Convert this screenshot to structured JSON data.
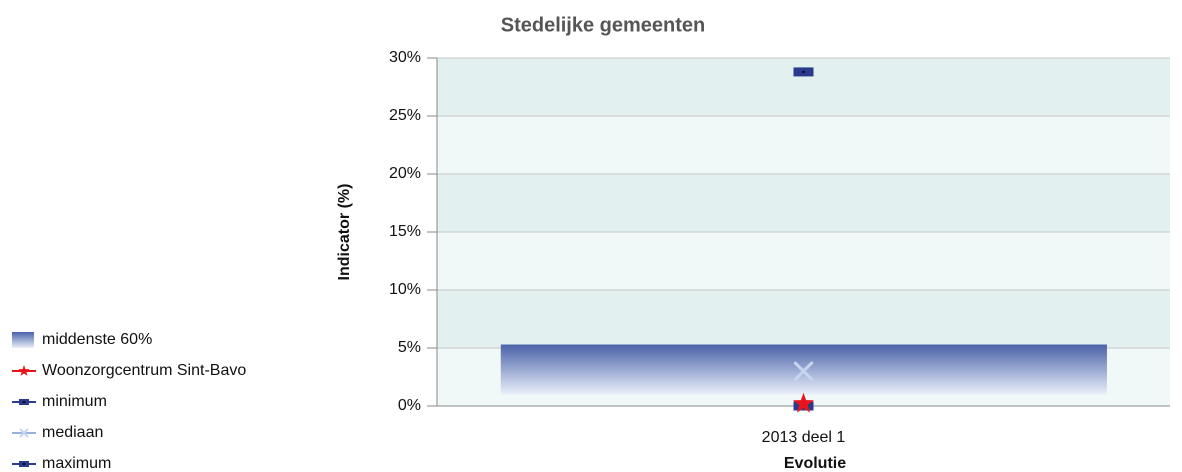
{
  "chart_data": {
    "type": "range-markers",
    "title": "Stedelijke gemeenten",
    "y_label": "Indicator (%)",
    "x_label": "Evolutie",
    "categories": [
      "2013 deel 1"
    ],
    "ylim": [
      0,
      30
    ],
    "yticks": [
      {
        "value": 0,
        "label": "0%"
      },
      {
        "value": 5,
        "label": "5%"
      },
      {
        "value": 10,
        "label": "10%"
      },
      {
        "value": 15,
        "label": "15%"
      },
      {
        "value": 20,
        "label": "20%"
      },
      {
        "value": 25,
        "label": "25%"
      },
      {
        "value": 30,
        "label": "30%"
      }
    ],
    "grid": true,
    "stripe_colors": [
      "#f1f8f8",
      "#e2f1ef"
    ],
    "series": [
      {
        "name": "middenste 60%",
        "color": "#4a62a8",
        "marker": "range",
        "low": [
          1.0
        ],
        "high": [
          5.3
        ]
      },
      {
        "name": "Woonzorgcentrum Sint-Bavo",
        "color": "#e8141b",
        "marker": "star",
        "values": [
          0.2
        ]
      },
      {
        "name": "minimum",
        "color": "#2a3a8c",
        "marker": "square",
        "values": [
          0
        ]
      },
      {
        "name": "mediaan",
        "color": "#c6d6ef",
        "marker": "x",
        "values": [
          3.0
        ]
      },
      {
        "name": "maximum",
        "color": "#2a3a8c",
        "marker": "square",
        "values": [
          28.8
        ]
      }
    ]
  }
}
